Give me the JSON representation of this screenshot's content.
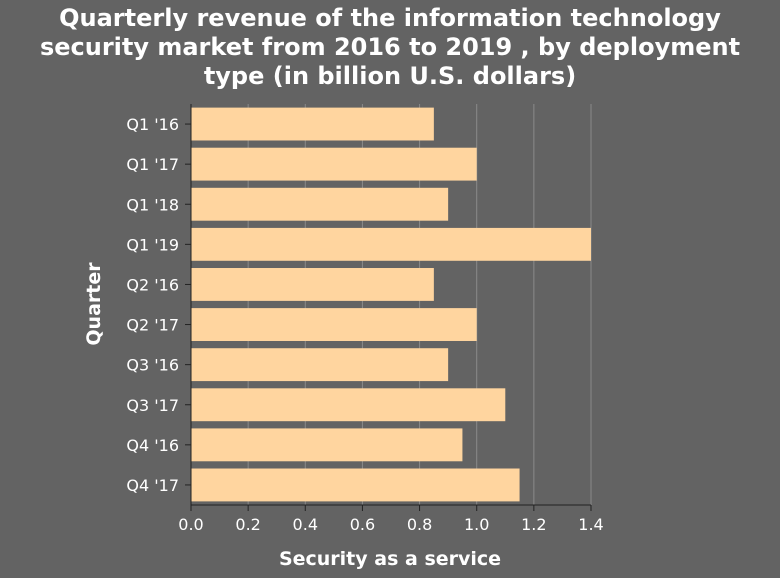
{
  "chart_data": {
    "type": "bar",
    "orientation": "horizontal",
    "title_lines": [
      "Quarterly revenue of the information technology",
      "security market from 2016 to 2019 , by deployment",
      "type (in billion U.S. dollars)"
    ],
    "xlabel": "Security as a service",
    "ylabel": "Quarter",
    "categories": [
      "Q1 '16",
      "Q1 '17",
      "Q1 '18",
      "Q1 '19",
      "Q2 '16",
      "Q2 '17",
      "Q3 '16",
      "Q3 '17",
      "Q4 '16",
      "Q4 '17"
    ],
    "values": [
      0.85,
      1.0,
      0.9,
      1.4,
      0.85,
      1.0,
      0.9,
      1.1,
      0.95,
      1.15
    ],
    "xlim": [
      0,
      1.4
    ],
    "xticks": [
      "0.0",
      "0.2",
      "0.4",
      "0.6",
      "0.8",
      "1.0",
      "1.2",
      "1.4"
    ],
    "grid": true,
    "colors": {
      "background": "#636363",
      "bar": "#ffd59f",
      "grid": "#8a8a8a",
      "text": "#ffffff"
    }
  }
}
